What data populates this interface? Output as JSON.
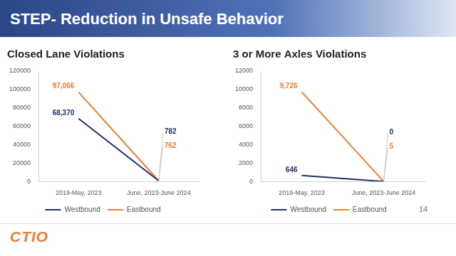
{
  "slide": {
    "title": "STEP- Reduction in Unsafe Behavior",
    "page_number": "14",
    "logo": "CTIO"
  },
  "chart_data": [
    {
      "type": "line",
      "title": "Closed Lane Violations",
      "categories": [
        "2019-May, 2023",
        "June, 2023-June 2024"
      ],
      "series": [
        {
          "name": "Westbound",
          "color": "#1f3066",
          "values": [
            68370,
            782
          ],
          "value_labels": [
            "68,370",
            "782"
          ]
        },
        {
          "name": "Eastbound",
          "color": "#ed7d31",
          "values": [
            97066,
            762
          ],
          "value_labels": [
            "97,066",
            "762"
          ]
        }
      ],
      "ylim": [
        0,
        120000
      ],
      "yticks": [
        0,
        20000,
        40000,
        60000,
        80000,
        100000,
        120000
      ],
      "grid": false,
      "legend": "bottom",
      "data_labels": true
    },
    {
      "type": "line",
      "title": "3 or More Axles Violations",
      "categories": [
        "2019-May, 2023",
        "June, 2023-June 2024"
      ],
      "series": [
        {
          "name": "Westbound",
          "color": "#1f3066",
          "values": [
            646,
            0
          ]
        },
        {
          "name": "Eastbound",
          "color": "#ed7d31",
          "values": [
            9726,
            5
          ],
          "value_labels": [
            "9,726",
            "5"
          ]
        }
      ],
      "ylim": [
        0,
        12000
      ],
      "yticks": [
        0,
        2000,
        4000,
        6000,
        8000,
        10000,
        12000
      ],
      "grid": false,
      "legend": "bottom",
      "data_labels": true
    }
  ]
}
